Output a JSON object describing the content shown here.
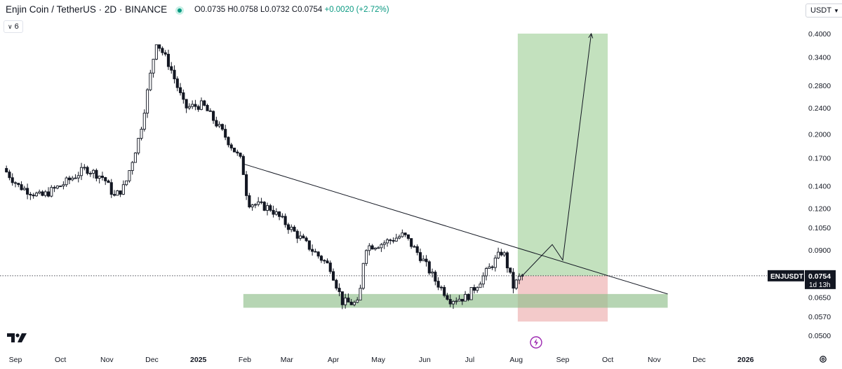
{
  "header": {
    "title": "Enjin Coin / TetherUS · 2D · BINANCE",
    "open": "O0.0735",
    "high": "H0.0758",
    "low": "L0.0732",
    "close": "C0.0754",
    "change": "+0.0020 (+2.72%)",
    "indicator_badge": "6",
    "currency": "USDT"
  },
  "colors": {
    "up": "#089981",
    "down": "#131722",
    "target_zone": "#b8dcb3",
    "stop_zone": "#f2c4c4",
    "support_zone": "#8fbf8a",
    "trendline": "#131722"
  },
  "chart_data": {
    "type": "candlestick",
    "symbol": "ENJUSDT",
    "price_scale": "log",
    "y_ticks": [
      0.4,
      0.34,
      0.28,
      0.24,
      0.2,
      0.17,
      0.14,
      0.12,
      0.105,
      0.09,
      0.065,
      0.057,
      0.05
    ],
    "y_tick_labels": [
      "0.4000",
      "0.3400",
      "0.2800",
      "0.2400",
      "0.2000",
      "0.1700",
      "0.1400",
      "0.1200",
      "0.1050",
      "0.0900",
      "0.0650",
      "0.0570",
      "0.0500"
    ],
    "x_tick_labels": [
      "Sep",
      "Oct",
      "Nov",
      "Dec",
      "2025",
      "Feb",
      "Mar",
      "Apr",
      "May",
      "Jun",
      "Jul",
      "Aug",
      "Sep",
      "Oct",
      "Nov",
      "Dec",
      "2026"
    ],
    "x_tick_dates": [
      "2024-09-01",
      "2024-10-01",
      "2024-11-01",
      "2024-12-01",
      "2025-01-01",
      "2025-02-01",
      "2025-03-01",
      "2025-04-01",
      "2025-05-01",
      "2025-06-01",
      "2025-07-01",
      "2025-08-01",
      "2025-09-01",
      "2025-10-01",
      "2025-11-01",
      "2025-12-01",
      "2026-01-01"
    ],
    "last_price": 0.0754,
    "last_price_label": "0.0754",
    "countdown": "1d 13h",
    "price_path": [
      {
        "date": "2024-08-26",
        "price": 0.158
      },
      {
        "date": "2024-09-05",
        "price": 0.14
      },
      {
        "date": "2024-09-20",
        "price": 0.13
      },
      {
        "date": "2024-10-05",
        "price": 0.142
      },
      {
        "date": "2024-10-20",
        "price": 0.158
      },
      {
        "date": "2024-11-01",
        "price": 0.148
      },
      {
        "date": "2024-11-08",
        "price": 0.13
      },
      {
        "date": "2024-11-15",
        "price": 0.14
      },
      {
        "date": "2024-11-25",
        "price": 0.2
      },
      {
        "date": "2024-12-06",
        "price": 0.38
      },
      {
        "date": "2024-12-15",
        "price": 0.32
      },
      {
        "date": "2024-12-25",
        "price": 0.24
      },
      {
        "date": "2025-01-06",
        "price": 0.245
      },
      {
        "date": "2025-01-20",
        "price": 0.2
      },
      {
        "date": "2025-02-01",
        "price": 0.165
      },
      {
        "date": "2025-02-05",
        "price": 0.125
      },
      {
        "date": "2025-02-20",
        "price": 0.12
      },
      {
        "date": "2025-03-05",
        "price": 0.105
      },
      {
        "date": "2025-03-20",
        "price": 0.09
      },
      {
        "date": "2025-04-01",
        "price": 0.08
      },
      {
        "date": "2025-04-09",
        "price": 0.063
      },
      {
        "date": "2025-04-20",
        "price": 0.062
      },
      {
        "date": "2025-04-24",
        "price": 0.092
      },
      {
        "date": "2025-05-05",
        "price": 0.094
      },
      {
        "date": "2025-05-20",
        "price": 0.1
      },
      {
        "date": "2025-06-01",
        "price": 0.085
      },
      {
        "date": "2025-06-10",
        "price": 0.073
      },
      {
        "date": "2025-06-20",
        "price": 0.064
      },
      {
        "date": "2025-07-01",
        "price": 0.065
      },
      {
        "date": "2025-07-10",
        "price": 0.073
      },
      {
        "date": "2025-07-25",
        "price": 0.09
      },
      {
        "date": "2025-08-01",
        "price": 0.07
      },
      {
        "date": "2025-08-06",
        "price": 0.0754
      }
    ],
    "annotations": {
      "trendline": {
        "start": {
          "date": "2025-01-31",
          "price": 0.163
        },
        "end": {
          "date": "2025-11-10",
          "price": 0.0665
        }
      },
      "support_zone": {
        "start": "2025-01-31",
        "end": "2025-11-10",
        "top": 0.0665,
        "bottom": 0.0605
      },
      "target_zone": {
        "start": "2025-08-02",
        "end": "2025-10-01",
        "top": 0.4,
        "bottom": 0.0754
      },
      "stop_zone": {
        "start": "2025-08-02",
        "end": "2025-10-01",
        "top": 0.0754,
        "bottom": 0.055
      },
      "projection": [
        {
          "date": "2025-08-05",
          "price": 0.0754
        },
        {
          "date": "2025-08-25",
          "price": 0.0935
        },
        {
          "date": "2025-09-01",
          "price": 0.084
        },
        {
          "date": "2025-09-20",
          "price": 0.4
        }
      ]
    }
  }
}
